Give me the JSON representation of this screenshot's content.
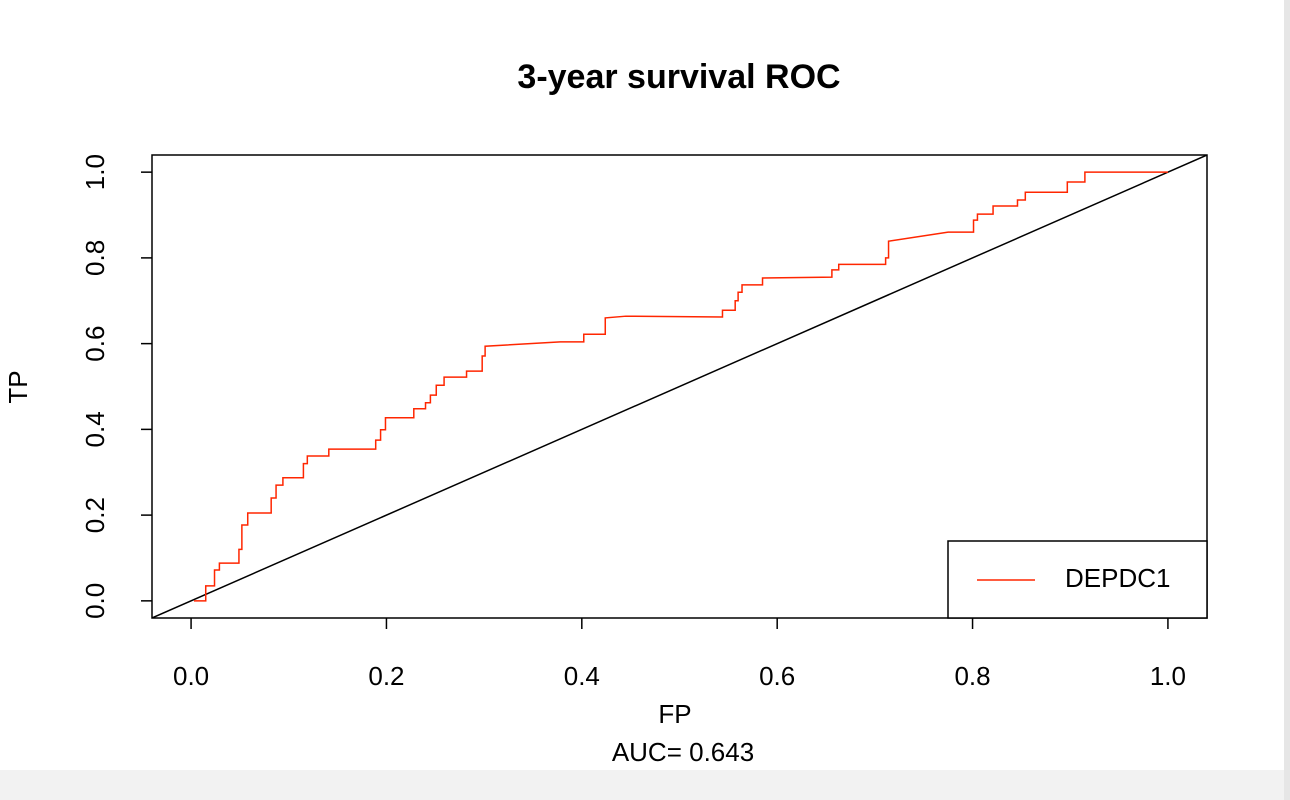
{
  "chart_data": {
    "type": "line",
    "title": "3-year survival ROC",
    "subtitle": "AUC= 0.643",
    "x_label": "FP",
    "y_label": "TP",
    "x": [
      0.003,
      0.015,
      0.015,
      0.024,
      0.024,
      0.029,
      0.029,
      0.049,
      0.049,
      0.052,
      0.052,
      0.058,
      0.058,
      0.082,
      0.082,
      0.087,
      0.087,
      0.094,
      0.094,
      0.115,
      0.115,
      0.119,
      0.119,
      0.141,
      0.141,
      0.189,
      0.189,
      0.194,
      0.194,
      0.199,
      0.199,
      0.228,
      0.228,
      0.24,
      0.24,
      0.245,
      0.245,
      0.251,
      0.251,
      0.259,
      0.259,
      0.282,
      0.282,
      0.298,
      0.298,
      0.301,
      0.301,
      0.378,
      0.402,
      0.402,
      0.424,
      0.424,
      0.445,
      0.544,
      0.544,
      0.557,
      0.557,
      0.56,
      0.56,
      0.564,
      0.564,
      0.585,
      0.585,
      0.656,
      0.656,
      0.663,
      0.663,
      0.711,
      0.711,
      0.714,
      0.714,
      0.775,
      0.801,
      0.801,
      0.805,
      0.805,
      0.821,
      0.821,
      0.846,
      0.846,
      0.854,
      0.854,
      0.897,
      0.897,
      0.915,
      0.915,
      1.0
    ],
    "series": [
      {
        "name": "DEPDC1",
        "color": "#ff2600",
        "values": [
          0,
          0,
          0.035,
          0.035,
          0.072,
          0.072,
          0.088,
          0.088,
          0.12,
          0.12,
          0.177,
          0.177,
          0.205,
          0.205,
          0.24,
          0.24,
          0.27,
          0.27,
          0.287,
          0.287,
          0.32,
          0.32,
          0.338,
          0.338,
          0.354,
          0.354,
          0.375,
          0.375,
          0.399,
          0.399,
          0.427,
          0.427,
          0.448,
          0.448,
          0.462,
          0.462,
          0.48,
          0.48,
          0.503,
          0.503,
          0.522,
          0.522,
          0.536,
          0.536,
          0.571,
          0.571,
          0.594,
          0.604,
          0.604,
          0.622,
          0.622,
          0.66,
          0.664,
          0.662,
          0.678,
          0.678,
          0.7,
          0.7,
          0.72,
          0.72,
          0.737,
          0.737,
          0.753,
          0.755,
          0.772,
          0.772,
          0.785,
          0.785,
          0.8,
          0.8,
          0.839,
          0.86,
          0.86,
          0.888,
          0.888,
          0.902,
          0.902,
          0.921,
          0.921,
          0.935,
          0.935,
          0.953,
          0.953,
          0.977,
          0.977,
          1.0,
          1.0
        ]
      }
    ],
    "xlim": [
      -0.04,
      1.04
    ],
    "ylim": [
      -0.04,
      1.04
    ],
    "xticks": [
      {
        "value": 0,
        "label": "0.0"
      },
      0.2,
      0.4,
      0.6,
      0.8,
      {
        "value": 1,
        "label": "1.0"
      }
    ],
    "yticks": [
      {
        "value": 0,
        "label": "0.0"
      },
      0.2,
      0.4,
      0.6,
      0.8,
      {
        "value": 1,
        "label": "1.0"
      }
    ],
    "reference_diagonal": true,
    "reference_color": "#000000",
    "legend": "bottomright"
  }
}
